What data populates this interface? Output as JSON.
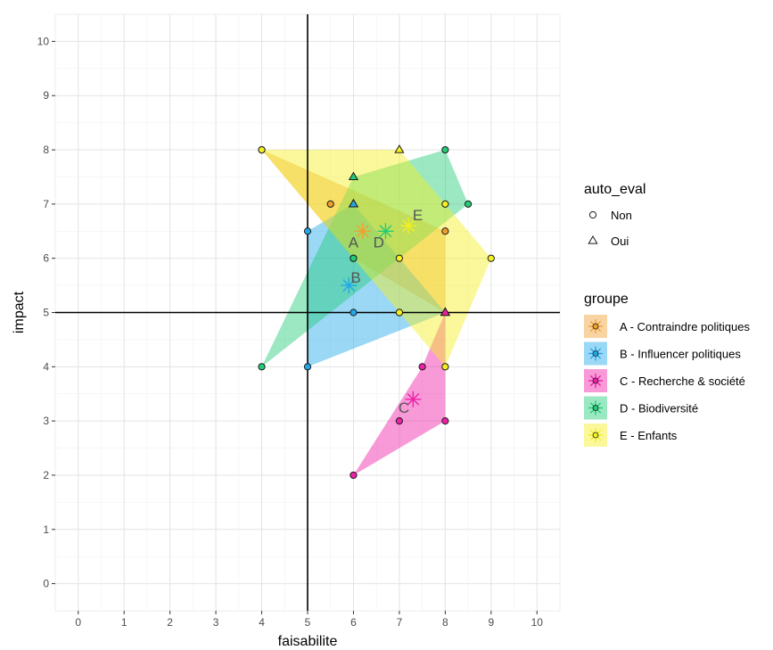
{
  "chart_data": {
    "type": "scatter",
    "xlabel": "faisabilite",
    "ylabel": "impact",
    "xlim": [
      -0.5,
      10.5
    ],
    "ylim": [
      -0.5,
      10.5
    ],
    "xticks": [
      "0",
      "1",
      "2",
      "3",
      "4",
      "5",
      "6",
      "7",
      "8",
      "9",
      "10"
    ],
    "yticks": [
      "0",
      "1",
      "2",
      "3",
      "4",
      "5",
      "6",
      "7",
      "8",
      "9",
      "10"
    ],
    "reference_lines": {
      "x": 5,
      "y": 5
    },
    "grid": true,
    "legend_position": "right",
    "legends": {
      "shape": {
        "title": "auto_eval",
        "entries": [
          {
            "label": "Non",
            "shape": "circle"
          },
          {
            "label": "Oui",
            "shape": "triangle"
          }
        ]
      },
      "groups": {
        "title": "groupe",
        "entries": [
          {
            "key": "A",
            "label": "A - Contraindre politiques",
            "color": "#f0a030"
          },
          {
            "key": "B",
            "label": "B - Influencer politiques",
            "color": "#22a8e8"
          },
          {
            "key": "C",
            "label": "C - Recherche & société",
            "color": "#f01fa8"
          },
          {
            "key": "D",
            "label": "D - Biodiversité",
            "color": "#22cc77"
          },
          {
            "key": "E",
            "label": "E - Enfants",
            "color": "#f4f020"
          }
        ]
      }
    },
    "groups": [
      {
        "key": "A",
        "points": [
          [
            4,
            8,
            "Non"
          ],
          [
            5.5,
            7,
            "Non"
          ],
          [
            6,
            6,
            "Non"
          ],
          [
            8,
            6.5,
            "Non"
          ],
          [
            6,
            7,
            "Oui"
          ],
          [
            8,
            5,
            "Oui"
          ]
        ],
        "hull": [
          [
            4,
            8
          ],
          [
            8,
            6.5
          ],
          [
            8,
            5
          ],
          [
            6,
            6
          ]
        ],
        "centroid": [
          6.2,
          6.5
        ],
        "label_pos": [
          6,
          6.3
        ]
      },
      {
        "key": "B",
        "points": [
          [
            5,
            6.5,
            "Non"
          ],
          [
            5,
            4,
            "Non"
          ],
          [
            6,
            5,
            "Non"
          ],
          [
            7,
            5,
            "Non"
          ],
          [
            6,
            7,
            "Oui"
          ],
          [
            8,
            5,
            "Oui"
          ]
        ],
        "hull": [
          [
            5,
            6.5
          ],
          [
            6,
            7
          ],
          [
            8,
            5
          ],
          [
            5,
            4
          ]
        ],
        "centroid": [
          5.9,
          5.5
        ],
        "label_pos": [
          6.05,
          5.65
        ]
      },
      {
        "key": "C",
        "points": [
          [
            6,
            2,
            "Non"
          ],
          [
            7,
            3,
            "Non"
          ],
          [
            7.5,
            4,
            "Non"
          ],
          [
            8,
            3,
            "Non"
          ],
          [
            8,
            5,
            "Oui"
          ]
        ],
        "hull": [
          [
            6,
            2
          ],
          [
            8,
            3
          ],
          [
            8,
            5
          ],
          [
            7.5,
            4
          ]
        ],
        "centroid": [
          7.3,
          3.4
        ],
        "label_pos": [
          7.1,
          3.25
        ]
      },
      {
        "key": "D",
        "points": [
          [
            4,
            4,
            "Non"
          ],
          [
            8,
            8,
            "Non"
          ],
          [
            8.5,
            7,
            "Non"
          ],
          [
            6,
            6,
            "Non"
          ],
          [
            6,
            7.5,
            "Oui"
          ]
        ],
        "hull": [
          [
            4,
            4
          ],
          [
            6,
            7.5
          ],
          [
            8,
            8
          ],
          [
            8.5,
            7
          ]
        ],
        "centroid": [
          6.7,
          6.5
        ],
        "label_pos": [
          6.55,
          6.3
        ]
      },
      {
        "key": "E",
        "points": [
          [
            4,
            8,
            "Non"
          ],
          [
            8,
            7,
            "Non"
          ],
          [
            9,
            6,
            "Non"
          ],
          [
            7,
            6,
            "Non"
          ],
          [
            7,
            5,
            "Non"
          ],
          [
            8,
            4,
            "Non"
          ],
          [
            7,
            8,
            "Oui"
          ]
        ],
        "hull": [
          [
            4,
            8
          ],
          [
            7,
            8
          ],
          [
            9,
            6
          ],
          [
            8,
            4
          ]
        ],
        "centroid": [
          7.2,
          6.6
        ],
        "label_pos": [
          7.4,
          6.8
        ]
      }
    ]
  }
}
